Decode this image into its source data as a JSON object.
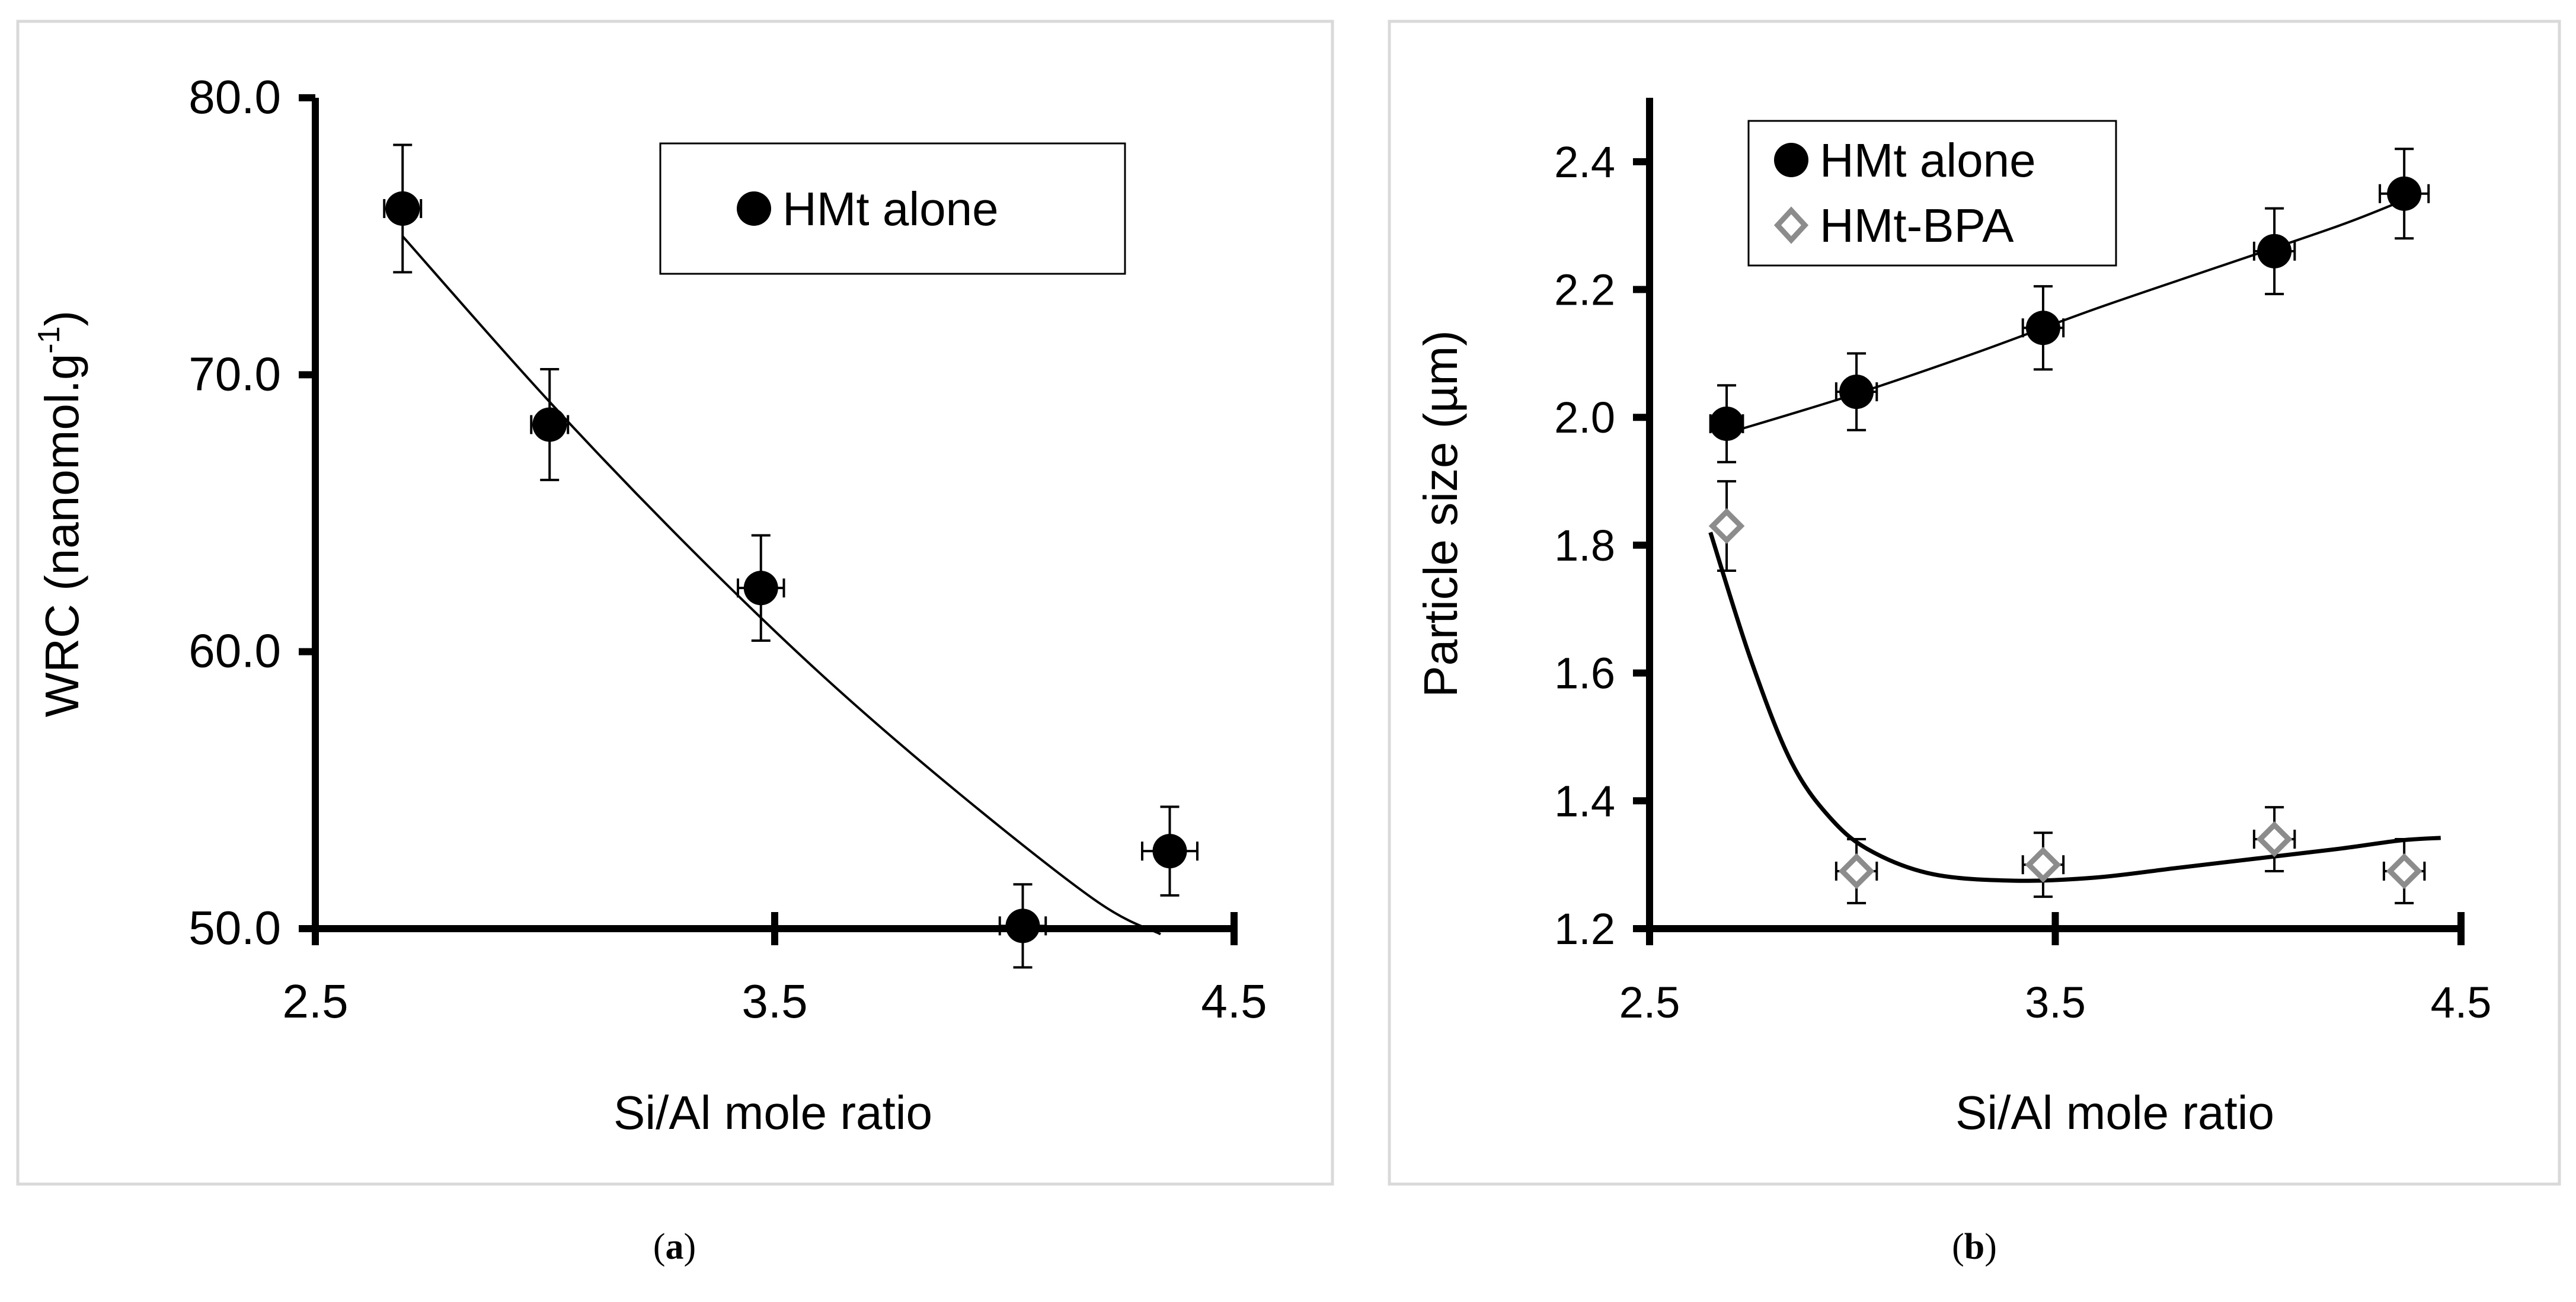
{
  "figure": {
    "caption_a_open": "(",
    "caption_a_letter": "a",
    "caption_a_close": ")",
    "caption_b_open": "(",
    "caption_b_letter": "b",
    "caption_b_close": ")"
  },
  "chart_data": [
    {
      "panel": "a",
      "type": "scatter",
      "title": "",
      "xlabel": "Si/Al mole ratio",
      "ylabel_main": "WRC (nanomol.g",
      "ylabel_sup": "-1",
      "ylabel_close": ")",
      "xlim": [
        2.5,
        4.5
      ],
      "ylim": [
        50.0,
        80.0
      ],
      "xticks": [
        "2.5",
        "3.5",
        "4.5"
      ],
      "yticks": [
        "50.0",
        "60.0",
        "70.0",
        "80.0"
      ],
      "grid": false,
      "legend_position": "top-right",
      "series": [
        {
          "name": "HMt alone",
          "marker": "circle",
          "color": "#000000",
          "x": [
            2.69,
            3.01,
            3.47,
            4.04,
            4.36
          ],
          "y": [
            76.0,
            68.2,
            62.3,
            50.1,
            52.8
          ],
          "y_err": [
            2.3,
            2.0,
            1.9,
            1.5,
            1.6
          ],
          "x_err": [
            0.04,
            0.04,
            0.05,
            0.05,
            0.06
          ]
        }
      ],
      "trendline": {
        "type": "polynomial",
        "color": "#000000",
        "x": [
          2.69,
          3.0,
          3.3,
          3.6,
          3.9,
          4.2,
          4.34
        ],
        "y": [
          75.0,
          69.2,
          64.0,
          59.2,
          54.9,
          51.0,
          49.8
        ]
      }
    },
    {
      "panel": "b",
      "type": "scatter",
      "title": "",
      "xlabel": "Si/Al mole ratio",
      "ylabel": "Particle size (µm)",
      "xlim": [
        2.5,
        4.5
      ],
      "ylim": [
        1.2,
        2.5
      ],
      "xticks": [
        "2.5",
        "3.5",
        "4.5"
      ],
      "yticks": [
        "1.2",
        "1.4",
        "1.6",
        "1.8",
        "2.0",
        "2.2",
        "2.4"
      ],
      "grid": false,
      "legend_position": "top-left",
      "series": [
        {
          "name": "HMt alone",
          "marker": "circle",
          "color": "#000000",
          "x": [
            2.69,
            3.01,
            3.47,
            4.04,
            4.36
          ],
          "y": [
            1.99,
            2.04,
            2.14,
            2.26,
            2.35
          ],
          "y_err": [
            0.06,
            0.06,
            0.065,
            0.067,
            0.07
          ],
          "x_err": [
            0.04,
            0.05,
            0.05,
            0.05,
            0.06
          ],
          "trendline": {
            "type": "polynomial",
            "color": "#000000",
            "x": [
              2.69,
              3.0,
              3.3,
              3.6,
              3.9,
              4.2,
              4.36
            ],
            "y": [
              1.975,
              2.035,
              2.1,
              2.17,
              2.235,
              2.3,
              2.34
            ]
          }
        },
        {
          "name": "HMt-BPA",
          "marker": "diamond",
          "color": "#8c8c8c",
          "x": [
            2.69,
            3.01,
            3.47,
            4.04,
            4.36
          ],
          "y": [
            1.83,
            1.29,
            1.3,
            1.34,
            1.29
          ],
          "y_err": [
            0.07,
            0.05,
            0.05,
            0.05,
            0.05
          ],
          "x_err": [
            0.0,
            0.05,
            0.05,
            0.05,
            0.05
          ],
          "trendline": {
            "type": "polynomial",
            "color": "#000000",
            "x": [
              2.65,
              2.75,
              2.85,
              2.95,
              3.05,
              3.2,
              3.4,
              3.6,
              3.8,
              4.0,
              4.2,
              4.35,
              4.45
            ],
            "y": [
              1.82,
              1.62,
              1.46,
              1.37,
              1.32,
              1.285,
              1.275,
              1.28,
              1.295,
              1.31,
              1.325,
              1.338,
              1.342
            ]
          }
        }
      ]
    }
  ]
}
